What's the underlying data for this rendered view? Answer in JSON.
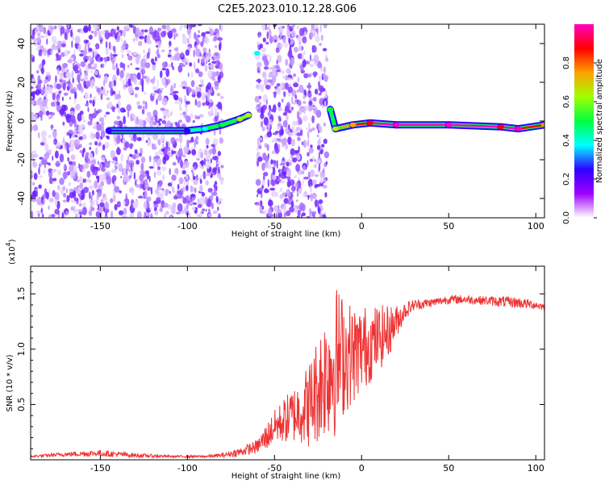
{
  "title": "C2E5.2023.010.12.28.G06",
  "chart_data": [
    {
      "type": "heatmap",
      "xlabel": "Height of straight line (km)",
      "ylabel": "Frequency (Hz)",
      "xlim": [
        -190,
        105
      ],
      "ylim": [
        -50,
        50
      ],
      "x_ticks": [
        -150,
        -100,
        -50,
        0,
        50,
        100
      ],
      "y_ticks": [
        -40,
        -20,
        0,
        20,
        40
      ],
      "colorbar": {
        "label": "Normalized spectral amplitude",
        "range": [
          0.0,
          1.0
        ],
        "ticks": [
          "0.0",
          "0.2",
          "0.4",
          "0.6",
          "0.8"
        ],
        "colors": [
          "#ffffff",
          "#a000ff",
          "#3000ff",
          "#00ffff",
          "#00ff40",
          "#a0ff00",
          "#ffa000",
          "#ff0000",
          "#ff00c0"
        ]
      },
      "noise_regions_x": [
        [
          -190,
          -80
        ],
        [
          -60,
          -20
        ]
      ],
      "tone_track": [
        {
          "x": -145,
          "y": -5,
          "amp": 0.3
        },
        {
          "x": -100,
          "y": -5,
          "amp": 0.3
        },
        {
          "x": -90,
          "y": -4,
          "amp": 0.4
        },
        {
          "x": -80,
          "y": -2,
          "amp": 0.5
        },
        {
          "x": -70,
          "y": 1,
          "amp": 0.6
        },
        {
          "x": -65,
          "y": 3,
          "amp": 0.6
        },
        {
          "x": -60,
          "y": 35,
          "amp": 0.4
        },
        {
          "x": -18,
          "y": 6,
          "amp": 0.5
        },
        {
          "x": -15,
          "y": -4,
          "amp": 0.6
        },
        {
          "x": -5,
          "y": -2,
          "amp": 0.8
        },
        {
          "x": 5,
          "y": -1,
          "amp": 0.9
        },
        {
          "x": 20,
          "y": -2,
          "amp": 1.0
        },
        {
          "x": 50,
          "y": -2,
          "amp": 1.0
        },
        {
          "x": 80,
          "y": -3,
          "amp": 0.9
        },
        {
          "x": 90,
          "y": -4,
          "amp": 1.0
        },
        {
          "x": 105,
          "y": -2,
          "amp": 0.8
        }
      ]
    },
    {
      "type": "line",
      "xlabel": "Height of straight line (km)",
      "ylabel": "SNR (10 * v/v)",
      "y_multiplier": "(x10",
      "y_multiplier_exp": "4",
      "y_multiplier_close": ")",
      "xlim": [
        -190,
        105
      ],
      "ylim": [
        0,
        1.75
      ],
      "x_ticks": [
        -150,
        -100,
        -50,
        0,
        50,
        100
      ],
      "y_ticks": [
        0.5,
        1.0,
        1.5
      ],
      "y_tick_labels": [
        "0.5",
        "1.0",
        "1.5"
      ],
      "line_color": "#ee3333",
      "series": [
        {
          "x": [
            -190,
            -170,
            -150,
            -130,
            -110,
            -90,
            -80,
            -70,
            -60,
            -55,
            -50,
            -45,
            -40,
            -35,
            -30,
            -25,
            -20,
            -15,
            -10,
            -5,
            0,
            5,
            10,
            15,
            20,
            25,
            30,
            40,
            50,
            60,
            70,
            80,
            90,
            100,
            105
          ],
          "y": [
            0.03,
            0.05,
            0.06,
            0.04,
            0.03,
            0.03,
            0.04,
            0.07,
            0.12,
            0.2,
            0.3,
            0.35,
            0.4,
            0.45,
            0.5,
            0.65,
            0.8,
            0.9,
            0.95,
            0.95,
            1.0,
            1.05,
            1.1,
            1.15,
            1.25,
            1.35,
            1.4,
            1.42,
            1.45,
            1.45,
            1.44,
            1.43,
            1.42,
            1.4,
            1.38
          ],
          "amplitude": [
            0.01,
            0.02,
            0.03,
            0.02,
            0.01,
            0.01,
            0.02,
            0.04,
            0.06,
            0.12,
            0.15,
            0.2,
            0.25,
            0.3,
            0.4,
            0.5,
            0.6,
            0.7,
            0.55,
            0.45,
            0.4,
            0.35,
            0.3,
            0.25,
            0.15,
            0.08,
            0.05,
            0.04,
            0.04,
            0.04,
            0.04,
            0.05,
            0.05,
            0.04,
            0.03
          ]
        }
      ]
    }
  ]
}
